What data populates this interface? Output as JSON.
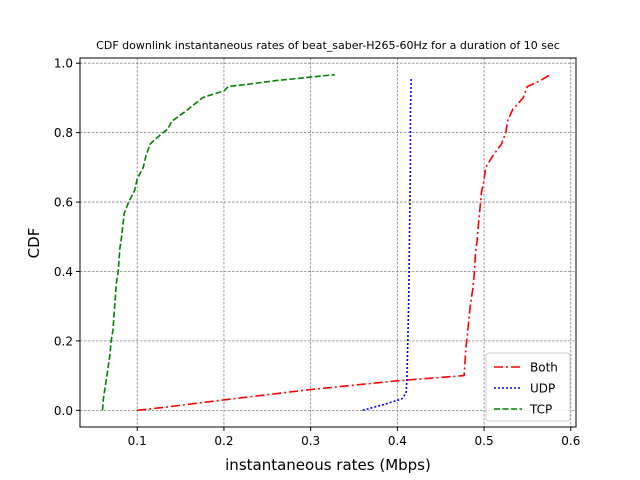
{
  "chart_data": {
    "type": "line",
    "title": "CDF downlink instantaneous rates of beat_saber-H265-60Hz for a duration of 10 sec",
    "xlabel": "instantaneous rates (Mbps)",
    "ylabel": "CDF",
    "xlim": [
      0.034,
      0.606
    ],
    "ylim": [
      -0.048,
      1.015
    ],
    "xticks": [
      0.1,
      0.2,
      0.3,
      0.4,
      0.5,
      0.6
    ],
    "xtick_labels": [
      "0.1",
      "0.2",
      "0.3",
      "0.4",
      "0.5",
      "0.6"
    ],
    "yticks": [
      0.0,
      0.2,
      0.4,
      0.6,
      0.8,
      1.0
    ],
    "ytick_labels": [
      "0.0",
      "0.2",
      "0.4",
      "0.6",
      "0.8",
      "1.0"
    ],
    "grid": true,
    "legend_position": "lower-right",
    "series": [
      {
        "name": "Both",
        "color": "#ff0000",
        "dash": "dashdot",
        "x": [
          0.1,
          0.135,
          0.2,
          0.3,
          0.4,
          0.45,
          0.477,
          0.479,
          0.48,
          0.482,
          0.484,
          0.487,
          0.489,
          0.49,
          0.492,
          0.494,
          0.496,
          0.497,
          0.499,
          0.5,
          0.502,
          0.51,
          0.52,
          0.525,
          0.527,
          0.533,
          0.545,
          0.55,
          0.565,
          0.576
        ],
        "y": [
          0.0,
          0.01,
          0.03,
          0.06,
          0.085,
          0.095,
          0.1,
          0.18,
          0.2,
          0.25,
          0.3,
          0.35,
          0.4,
          0.45,
          0.49,
          0.55,
          0.6,
          0.63,
          0.65,
          0.667,
          0.7,
          0.733,
          0.767,
          0.8,
          0.833,
          0.867,
          0.9,
          0.933,
          0.95,
          0.967
        ]
      },
      {
        "name": "UDP",
        "color": "#0000ff",
        "dash": "dotted",
        "x": [
          0.36,
          0.385,
          0.405,
          0.41,
          0.411,
          0.413,
          0.414,
          0.415,
          0.415,
          0.416
        ],
        "y": [
          0.0,
          0.017,
          0.033,
          0.05,
          0.085,
          0.3,
          0.5,
          0.7,
          0.85,
          0.96
        ]
      },
      {
        "name": "TCP",
        "color": "#008000",
        "dash": "dashed",
        "x": [
          0.06,
          0.061,
          0.063,
          0.065,
          0.068,
          0.07,
          0.072,
          0.073,
          0.074,
          0.076,
          0.078,
          0.08,
          0.082,
          0.085,
          0.09,
          0.097,
          0.1,
          0.107,
          0.11,
          0.115,
          0.12,
          0.125,
          0.13,
          0.135,
          0.14,
          0.155,
          0.165,
          0.175,
          0.18,
          0.2,
          0.205,
          0.23,
          0.26,
          0.3,
          0.328
        ],
        "y": [
          0.0,
          0.033,
          0.067,
          0.1,
          0.15,
          0.2,
          0.233,
          0.267,
          0.3,
          0.367,
          0.4,
          0.467,
          0.5,
          0.567,
          0.6,
          0.633,
          0.667,
          0.7,
          0.733,
          0.767,
          0.78,
          0.79,
          0.8,
          0.81,
          0.833,
          0.86,
          0.88,
          0.9,
          0.905,
          0.92,
          0.933,
          0.94,
          0.95,
          0.96,
          0.967
        ]
      }
    ]
  }
}
